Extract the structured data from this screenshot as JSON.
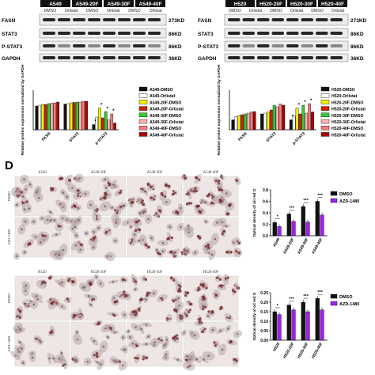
{
  "wb_left": {
    "groups": [
      "A549",
      "A549-20F",
      "A549-30F",
      "A549-40F"
    ],
    "treatments": [
      "DMSO",
      "Orlistat",
      "DMSO",
      "Orlistat",
      "DMSO",
      "Orlistat"
    ],
    "rows": [
      {
        "name": "FASN",
        "kd": "273KD"
      },
      {
        "name": "STAT3",
        "kd": "86KD"
      },
      {
        "name": "P-STAT3",
        "kd": "86KD"
      },
      {
        "name": "GAPDH",
        "kd": "36KD"
      }
    ]
  },
  "wb_right": {
    "groups": [
      "H520",
      "H520-20F",
      "H520-30F",
      "H520-40F"
    ],
    "treatments": [
      "DMSO",
      "Orlistat",
      "DMSO",
      "Orlistat",
      "DMSO",
      "Orlistat"
    ],
    "rows": [
      {
        "name": "FASN",
        "kd": "273KD"
      },
      {
        "name": "STAT3",
        "kd": "86KD"
      },
      {
        "name": "P-STAT3",
        "kd": "86KD"
      },
      {
        "name": "GAPDH",
        "kd": "36KD"
      }
    ]
  },
  "panel_d_label": "D",
  "micro_top": {
    "cols": [
      "A549",
      "A549-20F",
      "A549-30F",
      "A549-40F"
    ],
    "rows": [
      "DMSO",
      "AZD-1480"
    ]
  },
  "micro_bottom": {
    "cols": [
      "H520",
      "H520-20F",
      "H520-30F",
      "H520-40F"
    ],
    "rows": [
      "DMSO",
      "AZD-1480"
    ]
  },
  "scale_label": "50 μm",
  "colors": {
    "dmso": "#111111",
    "azd": "#a020f0"
  },
  "chart_data": [
    {
      "type": "bar",
      "ylabel": "Relative protein expression normalized by GAPDH",
      "categories": [
        "FASN",
        "STAT3",
        "p-STAT3"
      ],
      "ylim": [
        0,
        1.0
      ],
      "series": [
        {
          "name": "A549-DMSO",
          "color": "#111111",
          "values": [
            0.6,
            0.65,
            0.13
          ]
        },
        {
          "name": "A549-Orlistat",
          "color": "#ffffff",
          "values": [
            0.62,
            0.66,
            0.32
          ]
        },
        {
          "name": "A549-20F-DMSO",
          "color": "#f2f200",
          "values": [
            0.64,
            0.68,
            0.55
          ]
        },
        {
          "name": "A549-20F-Orlistat",
          "color": "#cc2200",
          "values": [
            0.64,
            0.69,
            0.3
          ]
        },
        {
          "name": "A549-30F-DMSO",
          "color": "#33cc33",
          "values": [
            0.66,
            0.7,
            0.46
          ]
        },
        {
          "name": "A549-30F-Orlistat",
          "color": "#ffb3b3",
          "values": [
            0.67,
            0.7,
            0.25
          ]
        },
        {
          "name": "A549-40F-DMSO",
          "color": "#ff7a7a",
          "values": [
            0.68,
            0.72,
            0.4
          ]
        },
        {
          "name": "A549-40F-Orlistat",
          "color": "#aa0000",
          "values": [
            0.7,
            0.72,
            0.17
          ]
        }
      ],
      "annotations": [
        "*",
        "*",
        "*",
        "*"
      ]
    },
    {
      "type": "bar",
      "ylabel": "Relative protein expression normalized by GAPDH",
      "categories": [
        "FASN",
        "STAT3",
        "p-STAT3"
      ],
      "ylim": [
        0,
        1.0
      ],
      "series": [
        {
          "name": "H520-DMSO",
          "color": "#111111",
          "values": [
            0.25,
            0.4,
            0.25
          ]
        },
        {
          "name": "H520-Orlistat",
          "color": "#ffffff",
          "values": [
            0.33,
            0.42,
            0.35
          ]
        },
        {
          "name": "H520-20F-DMSO",
          "color": "#f2f200",
          "values": [
            0.36,
            0.45,
            0.55
          ]
        },
        {
          "name": "H520-20F-Orlistat",
          "color": "#cc2200",
          "values": [
            0.38,
            0.5,
            0.4
          ]
        },
        {
          "name": "H520-30F-DMSO",
          "color": "#33cc33",
          "values": [
            0.4,
            0.62,
            0.62
          ]
        },
        {
          "name": "H520-30F-Orlistat",
          "color": "#ffb3b3",
          "values": [
            0.42,
            0.58,
            0.42
          ]
        },
        {
          "name": "H520-40F-DMSO",
          "color": "#ff7a7a",
          "values": [
            0.45,
            0.65,
            0.66
          ]
        },
        {
          "name": "H520-40F-Orlistat",
          "color": "#aa0000",
          "values": [
            0.46,
            0.62,
            0.45
          ]
        }
      ],
      "annotations": [
        "*",
        "*",
        "*",
        "*"
      ]
    },
    {
      "type": "bar",
      "ylabel": "Optical density of oil red O",
      "categories": [
        "A549",
        "A549-20F",
        "A549-30F",
        "A549-40F"
      ],
      "ylim": [
        0,
        0.8
      ],
      "yticks": [
        0.0,
        0.2,
        0.4,
        0.6,
        0.8
      ],
      "series": [
        {
          "name": "DMSO",
          "color": "#111111",
          "values": [
            0.23,
            0.38,
            0.51,
            0.6
          ]
        },
        {
          "name": "AZD-1480",
          "color": "#a020f0",
          "values": [
            0.16,
            0.25,
            0.24,
            0.36
          ]
        }
      ],
      "annotations": [
        "*",
        "***",
        "***",
        "***"
      ]
    },
    {
      "type": "bar",
      "ylabel": "Optical density of oil red O",
      "categories": [
        "H520",
        "H520-20F",
        "H520-30F",
        "H520-40F"
      ],
      "ylim": [
        0,
        0.25
      ],
      "yticks": [
        0.0,
        0.05,
        0.1,
        0.15,
        0.2,
        0.25
      ],
      "series": [
        {
          "name": "DMSO",
          "color": "#111111",
          "values": [
            0.15,
            0.185,
            0.2,
            0.22
          ]
        },
        {
          "name": "AZD-1480",
          "color": "#a020f0",
          "values": [
            0.135,
            0.16,
            0.15,
            0.16
          ]
        }
      ],
      "annotations": [
        "*",
        "***",
        "***",
        "***"
      ]
    }
  ]
}
